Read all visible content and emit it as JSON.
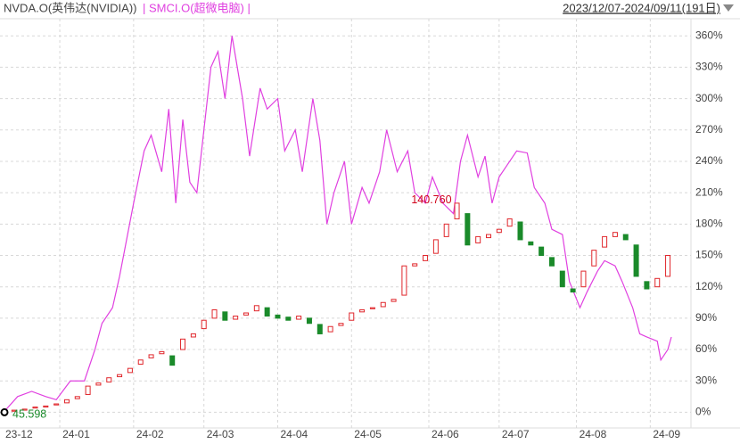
{
  "chart_data": {
    "type": "candlestick_compare",
    "legend": [
      "NVDA.O(英伟达(NVIDIA))",
      "| SMCI.O(超微电脑) |"
    ],
    "range_label": "2023/12/07-2024/09/11(191日)",
    "xlim": [
      0,
      190
    ],
    "ylim": [
      -15,
      373
    ],
    "xticks": [
      {
        "value": 0,
        "label": "23-12"
      },
      {
        "value": 16,
        "label": "24-01"
      },
      {
        "value": 37,
        "label": "24-02"
      },
      {
        "value": 57,
        "label": "24-03"
      },
      {
        "value": 78,
        "label": "24-04"
      },
      {
        "value": 99,
        "label": "24-05"
      },
      {
        "value": 121,
        "label": "24-06"
      },
      {
        "value": 141,
        "label": "24-07"
      },
      {
        "value": 163,
        "label": "24-08"
      },
      {
        "value": 184,
        "label": "24-09"
      }
    ],
    "yticks": [
      {
        "value": 0,
        "label": "0%"
      },
      {
        "value": 30,
        "label": "30%"
      },
      {
        "value": 60,
        "label": "60%"
      },
      {
        "value": 90,
        "label": "90%"
      },
      {
        "value": 120,
        "label": "120%"
      },
      {
        "value": 150,
        "label": "150%"
      },
      {
        "value": 180,
        "label": "180%"
      },
      {
        "value": 210,
        "label": "210%"
      },
      {
        "value": 240,
        "label": "240%"
      },
      {
        "value": 270,
        "label": "270%"
      },
      {
        "value": 300,
        "label": "300%"
      },
      {
        "value": 330,
        "label": "330%"
      },
      {
        "value": 360,
        "label": "360%"
      }
    ],
    "grid": true,
    "up_color": "#e0262b",
    "down_color": "#1a8a2a",
    "candles": {
      "name": "NVDA.O",
      "x": [
        0,
        3,
        6,
        9,
        12,
        15,
        18,
        21,
        24,
        27,
        30,
        33,
        36,
        39,
        42,
        45,
        48,
        51,
        54,
        57,
        60,
        63,
        66,
        69,
        72,
        75,
        78,
        81,
        84,
        87,
        90,
        93,
        96,
        99,
        102,
        105,
        108,
        111,
        114,
        117,
        120,
        123,
        126,
        129,
        132,
        135,
        138,
        141,
        144,
        147,
        150,
        153,
        156,
        159,
        162,
        165,
        168,
        171,
        174,
        177,
        180,
        183,
        186,
        189
      ],
      "open": [
        0,
        1,
        2,
        4,
        5,
        7,
        9,
        13,
        17,
        26,
        29,
        34,
        38,
        46,
        52,
        56,
        54,
        60,
        72,
        80,
        90,
        96,
        89,
        93,
        97,
        100,
        93,
        91,
        89,
        90,
        84,
        77,
        83,
        88,
        96,
        99,
        101,
        106,
        112,
        140,
        145,
        152,
        168,
        185,
        190,
        162,
        167,
        172,
        178,
        182,
        163,
        158,
        148,
        135,
        118,
        120,
        140,
        158,
        168,
        170,
        160,
        125,
        120,
        130
      ],
      "close": [
        0,
        2,
        3,
        5,
        6,
        8,
        12,
        15,
        25,
        28,
        33,
        36,
        42,
        50,
        55,
        58,
        45,
        70,
        75,
        88,
        98,
        88,
        92,
        95,
        102,
        92,
        90,
        88,
        92,
        85,
        75,
        82,
        85,
        95,
        98,
        100,
        105,
        108,
        140,
        142,
        150,
        165,
        180,
        200,
        160,
        168,
        170,
        175,
        185,
        165,
        160,
        150,
        140,
        120,
        115,
        135,
        155,
        168,
        172,
        165,
        130,
        118,
        128,
        150
      ]
    },
    "series": [
      {
        "name": "SMCI.O",
        "color": "#e040e0",
        "x": [
          0,
          4,
          8,
          12,
          15,
          19,
          23,
          26,
          28,
          31,
          33,
          37,
          40,
          42,
          45,
          47,
          49,
          51,
          53,
          55,
          57,
          59,
          61,
          63,
          65,
          68,
          70,
          73,
          75,
          78,
          80,
          83,
          85,
          88,
          90,
          92,
          94,
          97,
          99,
          102,
          104,
          107,
          109,
          112,
          115,
          117,
          120,
          122,
          125,
          128,
          130,
          132,
          135,
          137,
          139,
          141,
          144,
          146,
          149,
          151,
          154,
          156,
          159,
          161,
          164,
          166,
          169,
          171,
          174,
          176,
          179,
          181,
          183,
          186,
          187,
          189,
          190
        ],
        "values": [
          0,
          15,
          20,
          15,
          12,
          30,
          30,
          60,
          85,
          100,
          130,
          200,
          250,
          265,
          230,
          290,
          200,
          280,
          220,
          210,
          270,
          330,
          345,
          300,
          360,
          300,
          245,
          310,
          290,
          300,
          250,
          270,
          230,
          300,
          260,
          180,
          210,
          240,
          180,
          215,
          200,
          230,
          270,
          230,
          250,
          210,
          200,
          225,
          200,
          190,
          240,
          265,
          225,
          245,
          200,
          225,
          240,
          250,
          248,
          215,
          200,
          175,
          170,
          125,
          100,
          115,
          135,
          145,
          140,
          125,
          100,
          75,
          72,
          68,
          50,
          60,
          72
        ]
      }
    ],
    "annotations": [
      "140.760",
      "45.598"
    ]
  }
}
